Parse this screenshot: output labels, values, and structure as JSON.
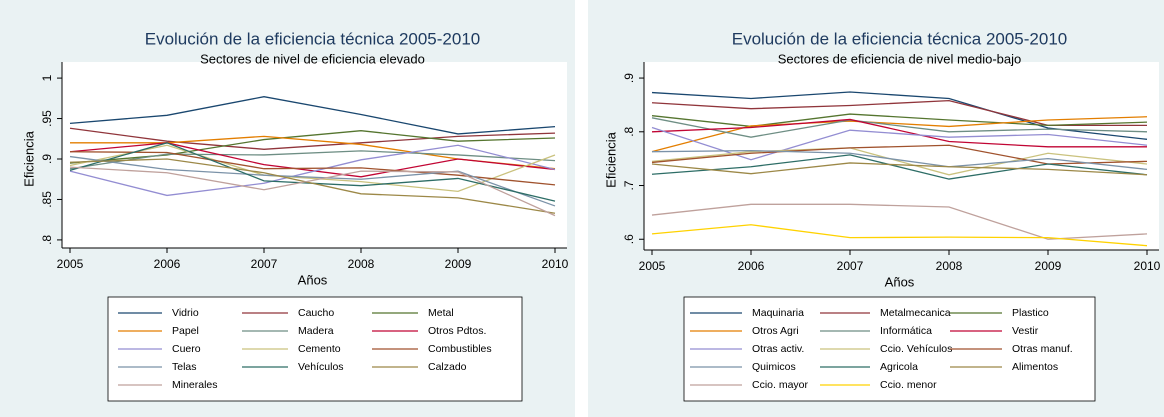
{
  "chart_data": [
    {
      "type": "line",
      "title": "Evolución de la eficiencia técnica 2005-2010",
      "subtitle": "Sectores de nivel de eficiencia elevado",
      "xlabel": "Años",
      "ylabel": "Eficiencia",
      "x": [
        2005,
        2006,
        2007,
        2008,
        2009,
        2010
      ],
      "xlim": [
        2005,
        2010
      ],
      "xticks": [
        2005,
        2006,
        2007,
        2008,
        2009,
        2010
      ],
      "ylim": [
        0.79,
        1.01
      ],
      "yticks": [
        {
          "value": 0.8,
          "label": ".8"
        },
        {
          "value": 0.85,
          "label": ".85"
        },
        {
          "value": 0.9,
          "label": ".9"
        },
        {
          "value": 0.95,
          "label": ".95"
        },
        1
      ],
      "grid": false,
      "series": [
        {
          "name": "Vidrio",
          "color": "#1a476f",
          "values": [
            0.944,
            0.954,
            0.977,
            0.955,
            0.931,
            0.94
          ]
        },
        {
          "name": "Caucho",
          "color": "#90353b",
          "values": [
            0.938,
            0.922,
            0.912,
            0.92,
            0.928,
            0.932
          ]
        },
        {
          "name": "Metal",
          "color": "#55752f",
          "values": [
            0.895,
            0.905,
            0.924,
            0.935,
            0.922,
            0.926
          ]
        },
        {
          "name": "Papel",
          "color": "#e37e00",
          "values": [
            0.92,
            0.92,
            0.928,
            0.918,
            0.9,
            0.888
          ]
        },
        {
          "name": "Madera",
          "color": "#6e8e84",
          "values": [
            0.888,
            0.906,
            0.905,
            0.91,
            0.905,
            0.898
          ]
        },
        {
          "name": "Otros Pdtos.",
          "color": "#c10534",
          "values": [
            0.909,
            0.92,
            0.893,
            0.878,
            0.9,
            0.887
          ]
        },
        {
          "name": "Cuero",
          "color": "#938dd2",
          "values": [
            0.885,
            0.855,
            0.87,
            0.899,
            0.917,
            0.887
          ]
        },
        {
          "name": "Cemento",
          "color": "#cac27e",
          "values": [
            0.892,
            0.917,
            0.88,
            0.872,
            0.86,
            0.905
          ]
        },
        {
          "name": "Combustibles",
          "color": "#a0522d",
          "values": [
            0.909,
            0.908,
            0.888,
            0.889,
            0.88,
            0.868
          ]
        },
        {
          "name": "Telas",
          "color": "#7b92a8",
          "values": [
            0.903,
            0.887,
            0.88,
            0.875,
            0.885,
            0.842
          ]
        },
        {
          "name": "Vehículos",
          "color": "#2d6d66",
          "values": [
            0.886,
            0.92,
            0.873,
            0.867,
            0.876,
            0.848
          ]
        },
        {
          "name": "Calzado",
          "color": "#9c8847",
          "values": [
            0.896,
            0.9,
            0.883,
            0.857,
            0.852,
            0.833
          ]
        },
        {
          "name": "Minerales",
          "color": "#bfa19c",
          "values": [
            0.89,
            0.883,
            0.862,
            0.885,
            0.884,
            0.83
          ]
        }
      ]
    },
    {
      "type": "line",
      "title": "Evolución de la eficiencia técnica 2005-2010",
      "subtitle": "Sectores de eficiencia de nivel medio-bajo",
      "xlabel": "Años",
      "ylabel": "Eficiencia",
      "x": [
        2005,
        2006,
        2007,
        2008,
        2009,
        2010
      ],
      "xlim": [
        2005,
        2010
      ],
      "xticks": [
        2005,
        2006,
        2007,
        2008,
        2009,
        2010
      ],
      "ylim": [
        0.58,
        0.915
      ],
      "yticks": [
        {
          "value": 0.6,
          "label": ".6"
        },
        {
          "value": 0.7,
          "label": ".7"
        },
        {
          "value": 0.8,
          "label": ".8"
        },
        {
          "value": 0.9,
          "label": ".9"
        }
      ],
      "grid": false,
      "series": [
        {
          "name": "Maquinaria",
          "color": "#1a476f",
          "values": [
            0.873,
            0.862,
            0.874,
            0.862,
            0.807,
            0.786
          ]
        },
        {
          "name": "Metalmecanica",
          "color": "#90353b",
          "values": [
            0.854,
            0.843,
            0.849,
            0.858,
            0.812,
            0.812
          ]
        },
        {
          "name": "Plastico",
          "color": "#55752f",
          "values": [
            0.83,
            0.81,
            0.833,
            0.822,
            0.812,
            0.818
          ]
        },
        {
          "name": "Otros Agri",
          "color": "#e37e00",
          "values": [
            0.763,
            0.811,
            0.82,
            0.81,
            0.822,
            0.828
          ]
        },
        {
          "name": "Informática",
          "color": "#6e8e84",
          "values": [
            0.826,
            0.79,
            0.822,
            0.8,
            0.805,
            0.8
          ]
        },
        {
          "name": "Vestir",
          "color": "#c10534",
          "values": [
            0.8,
            0.808,
            0.823,
            0.782,
            0.772,
            0.772
          ]
        },
        {
          "name": "Otras activ.",
          "color": "#938dd2",
          "values": [
            0.808,
            0.748,
            0.803,
            0.79,
            0.795,
            0.775
          ]
        },
        {
          "name": "Ccio. Vehículos",
          "color": "#cac27e",
          "values": [
            0.745,
            0.763,
            0.77,
            0.72,
            0.76,
            0.74
          ]
        },
        {
          "name": "Otras manuf.",
          "color": "#a0522d",
          "values": [
            0.743,
            0.76,
            0.77,
            0.775,
            0.74,
            0.745
          ]
        },
        {
          "name": "Quimicos",
          "color": "#7b92a8",
          "values": [
            0.763,
            0.765,
            0.76,
            0.735,
            0.75,
            0.73
          ]
        },
        {
          "name": "Agricola",
          "color": "#2d6d66",
          "values": [
            0.721,
            0.735,
            0.757,
            0.712,
            0.74,
            0.72
          ]
        },
        {
          "name": "Alimentos",
          "color": "#9c8847",
          "values": [
            0.74,
            0.722,
            0.742,
            0.735,
            0.73,
            0.72
          ]
        },
        {
          "name": "Ccio. mayor",
          "color": "#bfa19c",
          "values": [
            0.645,
            0.665,
            0.665,
            0.66,
            0.6,
            0.61
          ]
        },
        {
          "name": "Ccio. menor",
          "color": "#ffd200",
          "values": [
            0.61,
            0.627,
            0.603,
            0.604,
            0.603,
            0.588
          ]
        }
      ]
    }
  ]
}
